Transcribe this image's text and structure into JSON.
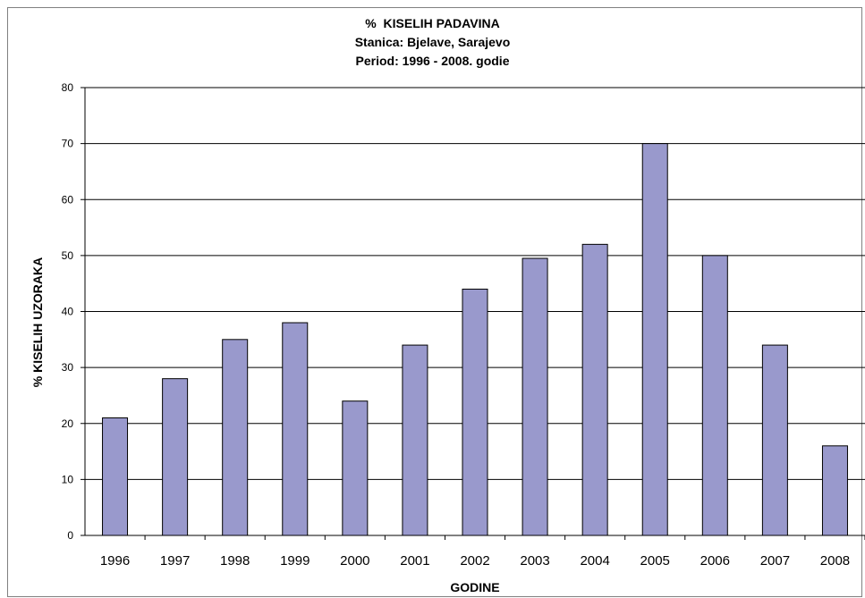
{
  "chart_data": {
    "type": "bar",
    "title_lines": [
      "%  KISELIH PADAVINA",
      "Stanica: Bjelave, Sarajevo",
      "Period: 1996 - 2008. godie"
    ],
    "xlabel": "GODINE",
    "ylabel": "% KISELIH UZORAKA",
    "categories": [
      "1996",
      "1997",
      "1998",
      "1999",
      "2000",
      "2001",
      "2002",
      "2003",
      "2004",
      "2005",
      "2006",
      "2007",
      "2008"
    ],
    "values": [
      21,
      28,
      35,
      38,
      24,
      34,
      44,
      49.5,
      52,
      70,
      50,
      34,
      16
    ],
    "ylim": [
      0,
      80
    ],
    "yticks": [
      0,
      10,
      20,
      30,
      40,
      50,
      60,
      70,
      80
    ],
    "grid": true,
    "bar_color": "#9999cc",
    "bar_border_color": "#000000"
  }
}
